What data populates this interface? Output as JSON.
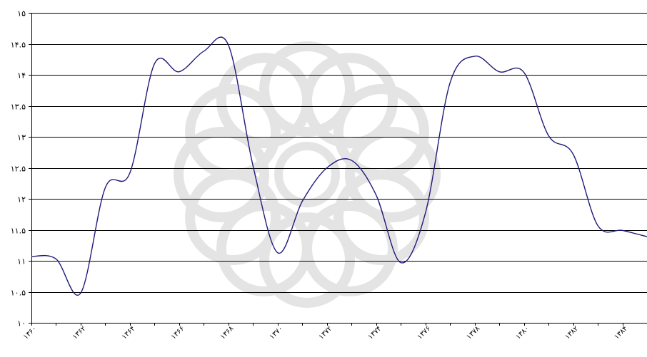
{
  "chart_data": {
    "type": "line",
    "title": "",
    "xlabel": "",
    "ylabel": "",
    "ylim": [
      10,
      15
    ],
    "xlim": [
      1360,
      1385
    ],
    "y_ticks": [
      10,
      10.5,
      11,
      11.5,
      12,
      12.5,
      13,
      13.5,
      14,
      14.5,
      15
    ],
    "y_tick_labels": [
      "۱۰",
      "۱۰.۵",
      "۱۱",
      "۱۱.۵",
      "۱۲",
      "۱۲.۵",
      "۱۳",
      "۱۳.۵",
      "۱۴",
      "۱۴.۵",
      "۱۵"
    ],
    "x_ticks": [
      1360,
      1362,
      1364,
      1366,
      1368,
      1370,
      1372,
      1374,
      1376,
      1378,
      1380,
      1382,
      1384
    ],
    "x_tick_labels": [
      "۱۳۶۰",
      "۱۳۶۲",
      "۱۳۶۴",
      "۱۳۶۶",
      "۱۳۶۸",
      "۱۳۷۰",
      "۱۳۷۲",
      "۱۳۷۴",
      "۱۳۷۶",
      "۱۳۷۸",
      "۱۳۸۰",
      "۱۳۸۲",
      "۱۳۸۴"
    ],
    "grid": true,
    "legend": "none",
    "series": [
      {
        "color": "#1f1a7a",
        "x": [
          1360,
          1361,
          1362,
          1363,
          1364,
          1365,
          1366,
          1367,
          1368,
          1369,
          1370,
          1371,
          1372,
          1373,
          1374,
          1375,
          1376,
          1377,
          1378,
          1379,
          1380,
          1381,
          1382,
          1383,
          1384,
          1385
        ],
        "values": [
          11.07,
          11.03,
          10.48,
          12.18,
          12.42,
          14.18,
          14.05,
          14.38,
          14.48,
          12.53,
          11.13,
          11.96,
          12.5,
          12.62,
          12.06,
          10.97,
          11.77,
          13.87,
          14.3,
          14.05,
          14.04,
          13.02,
          12.72,
          11.57,
          11.49,
          11.39
        ]
      }
    ]
  }
}
